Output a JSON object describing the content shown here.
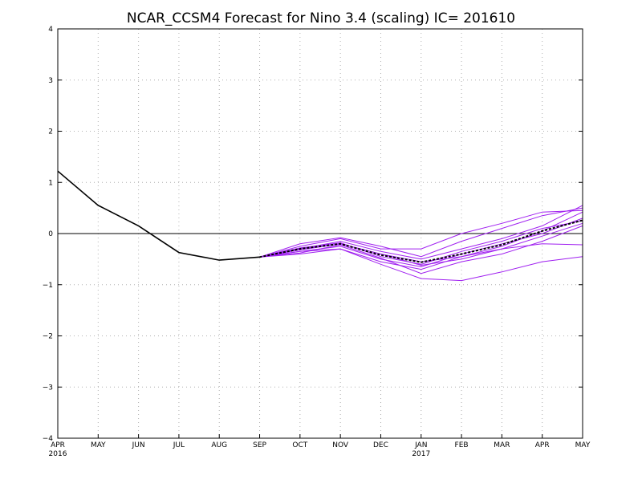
{
  "chart_data": {
    "type": "line",
    "title": "NCAR_CCSM4 Forecast for Nino 3.4 (scaling)  IC= 201610",
    "xlabel": "",
    "ylabel": "",
    "categories": [
      "APR",
      "MAY",
      "JUN",
      "JUL",
      "AUG",
      "SEP",
      "OCT",
      "NOV",
      "DEC",
      "JAN",
      "FEB",
      "MAR",
      "APR",
      "MAY"
    ],
    "year_labels": [
      {
        "index": 0,
        "text": "2016"
      },
      {
        "index": 9,
        "text": "2017"
      }
    ],
    "yticks": [
      -4,
      -3,
      -2,
      -1,
      0,
      1,
      2,
      3,
      4
    ],
    "ylim": [
      -4,
      4
    ],
    "grid": true,
    "zero_line": true,
    "colors": {
      "observed": "#000000",
      "members": "#a020f0",
      "ensemble_mean": "#000000",
      "grid": "#b0b0b0"
    },
    "observed": {
      "x_start_index": 0,
      "values": [
        1.22,
        0.55,
        0.15,
        -0.37,
        -0.52,
        -0.46
      ]
    },
    "members": [
      {
        "x_start_index": 5,
        "values": [
          -0.46,
          -0.25,
          -0.1,
          -0.3,
          -0.3,
          0.0,
          0.2,
          0.42,
          0.45
        ]
      },
      {
        "x_start_index": 5,
        "values": [
          -0.46,
          -0.2,
          -0.08,
          -0.25,
          -0.45,
          -0.15,
          0.1,
          0.35,
          0.5
        ]
      },
      {
        "x_start_index": 5,
        "values": [
          -0.46,
          -0.3,
          -0.15,
          -0.35,
          -0.5,
          -0.3,
          -0.1,
          0.15,
          0.55
        ]
      },
      {
        "x_start_index": 5,
        "values": [
          -0.46,
          -0.32,
          -0.2,
          -0.4,
          -0.55,
          -0.45,
          -0.25,
          0.05,
          0.42
        ]
      },
      {
        "x_start_index": 5,
        "values": [
          -0.46,
          -0.35,
          -0.25,
          -0.5,
          -0.65,
          -0.4,
          -0.2,
          0.0,
          0.3
        ]
      },
      {
        "x_start_index": 5,
        "values": [
          -0.46,
          -0.28,
          -0.18,
          -0.45,
          -0.6,
          -0.35,
          -0.15,
          0.1,
          0.25
        ]
      },
      {
        "x_start_index": 5,
        "values": [
          -0.46,
          -0.35,
          -0.3,
          -0.55,
          -0.7,
          -0.45,
          -0.3,
          -0.05,
          0.2
        ]
      },
      {
        "x_start_index": 5,
        "values": [
          -0.46,
          -0.38,
          -0.22,
          -0.48,
          -0.78,
          -0.55,
          -0.4,
          -0.15,
          0.15
        ]
      },
      {
        "x_start_index": 5,
        "values": [
          -0.46,
          -0.4,
          -0.3,
          -0.6,
          -0.88,
          -0.92,
          -0.75,
          -0.55,
          -0.45
        ]
      },
      {
        "x_start_index": 5,
        "values": [
          -0.46,
          -0.3,
          -0.2,
          -0.4,
          -0.62,
          -0.5,
          -0.3,
          -0.2,
          -0.22
        ]
      }
    ],
    "ensemble_mean": {
      "x_start_index": 5,
      "values": [
        -0.46,
        -0.3,
        -0.2,
        -0.42,
        -0.56,
        -0.4,
        -0.22,
        0.05,
        0.26
      ]
    }
  }
}
